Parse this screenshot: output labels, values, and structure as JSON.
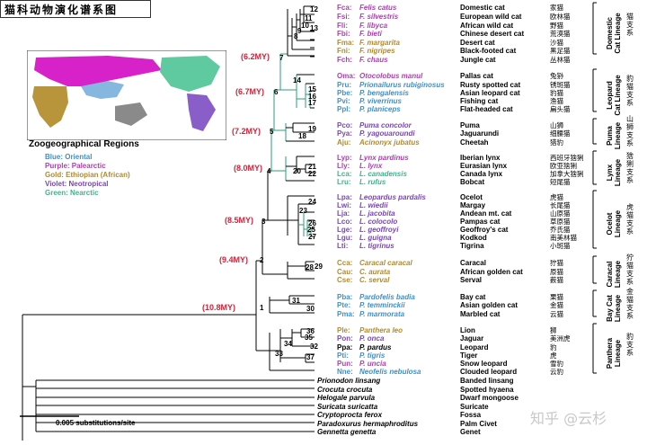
{
  "title": "猫科动物演化谱系图",
  "map": {
    "heading": "Zoogeographical Regions",
    "legend": [
      {
        "label": "Blue: Oriental",
        "color": "#3f8fc9"
      },
      {
        "label": "Purple: Palearctic",
        "color": "#b23bb3"
      },
      {
        "label": "Gold: Ethiopian (African)",
        "color": "#b38a2a"
      },
      {
        "label": "Violet: Neotropical",
        "color": "#7a45b8"
      },
      {
        "label": "Green: Nearctic",
        "color": "#3fb38a"
      }
    ],
    "region_colors": {
      "palearctic": "#d622c8",
      "oriental": "#86b7de",
      "ethiopian": "#b8943a",
      "neotropical": "#8a5ec8",
      "nearctic": "#5fc9a0",
      "australia": "#8a8a8a"
    }
  },
  "ages": [
    "(6.2MY)",
    "(6.7MY)",
    "(7.2MY)",
    "(8.0MY)",
    "(8.5MY)",
    "(9.4MY)",
    "(10.8MY)"
  ],
  "nodes": [
    "1",
    "2",
    "3",
    "4",
    "5",
    "6",
    "7",
    "8",
    "9",
    "10",
    "11",
    "12",
    "13",
    "14",
    "15",
    "16",
    "17",
    "18",
    "19",
    "20",
    "21",
    "22",
    "23",
    "24",
    "25",
    "26",
    "27",
    "28",
    "29",
    "30",
    "31",
    "32",
    "33",
    "34",
    "35",
    "36",
    "37"
  ],
  "taxa": [
    {
      "code": "Fca:",
      "sci": "Felis catus",
      "common": "Domestic cat",
      "cn": "家猫",
      "color": "#b23bb3"
    },
    {
      "code": "Fsi:",
      "sci": "F. silvestris",
      "common": "European wild cat",
      "cn": "欧林猫",
      "color": "#b23bb3"
    },
    {
      "code": "Fli:",
      "sci": "F. libyca",
      "common": "African wild cat",
      "cn": "野猫",
      "color": "#b23bb3"
    },
    {
      "code": "Fbi:",
      "sci": "F. bieti",
      "common": "Chinese desert cat",
      "cn": "荒漠猫",
      "color": "#b23bb3"
    },
    {
      "code": "Fma:",
      "sci": "F. margarita",
      "common": "Desert cat",
      "cn": "沙猫",
      "color": "#b38a2a"
    },
    {
      "code": "Fni:",
      "sci": "F. nigripes",
      "common": "Black-footed cat",
      "cn": "黑足猫",
      "color": "#b38a2a"
    },
    {
      "code": "Fch:",
      "sci": "F. chaus",
      "common": "Jungle cat",
      "cn": "丛林猫",
      "color": "#b23bb3"
    },
    {
      "code": "Oma:",
      "sci": "Otocolobus manul",
      "common": "Pallas cat",
      "cn": "兔狲",
      "color": "#b23bb3"
    },
    {
      "code": "Pru:",
      "sci": "Prionailurus rubiginosus",
      "common": "Rusty spotted cat",
      "cn": "锈斑猫",
      "color": "#3f8fc9"
    },
    {
      "code": "Pbe:",
      "sci": "P. bengalensis",
      "common": "Asian leopard cat",
      "cn": "豹猫",
      "color": "#3f8fc9"
    },
    {
      "code": "Pvi:",
      "sci": "P. viverrinus",
      "common": "Fishing cat",
      "cn": "渔猫",
      "color": "#3f8fc9"
    },
    {
      "code": "Ppl:",
      "sci": "P. planiceps",
      "common": "Flat-headed cat",
      "cn": "扁头猫",
      "color": "#3f8fc9"
    },
    {
      "code": "Pco:",
      "sci": "Puma concolor",
      "common": "Puma",
      "cn": "山狮",
      "color": "#7a45b8"
    },
    {
      "code": "Pya:",
      "sci": "P. yagouaroundi",
      "common": "Jaguarundi",
      "cn": "细腰猫",
      "color": "#7a45b8"
    },
    {
      "code": "Aju:",
      "sci": "Acinonyx jubatus",
      "common": "Cheetah",
      "cn": "猎豹",
      "color": "#b38a2a"
    },
    {
      "code": "Lyp:",
      "sci": "Lynx pardinus",
      "common": "Iberian lynx",
      "cn": "西班牙猞猁",
      "color": "#b23bb3"
    },
    {
      "code": "Lly:",
      "sci": "L. lynx",
      "common": "Eurasian lynx",
      "cn": "欧亚猞猁",
      "color": "#b23bb3"
    },
    {
      "code": "Lca:",
      "sci": "L. canadensis",
      "common": "Canada lynx",
      "cn": "加拿大猞猁",
      "color": "#3fb38a"
    },
    {
      "code": "Lru:",
      "sci": "L. rufus",
      "common": "Bobcat",
      "cn": "短尾猫",
      "color": "#3fb38a"
    },
    {
      "code": "Lpa:",
      "sci": "Leopardus pardalis",
      "common": "Ocelot",
      "cn": "虎猫",
      "color": "#7a45b8"
    },
    {
      "code": "Lwi:",
      "sci": "L. wiedii",
      "common": "Margay",
      "cn": "长尾猫",
      "color": "#7a45b8"
    },
    {
      "code": "Lja:",
      "sci": "L. jacobita",
      "common": "Andean mt. cat",
      "cn": "山原猫",
      "color": "#7a45b8"
    },
    {
      "code": "Lco:",
      "sci": "L. colocolo",
      "common": "Pampas cat",
      "cn": "草原猫",
      "color": "#7a45b8"
    },
    {
      "code": "Lge:",
      "sci": "L. geoffroyi",
      "common": "Geoffroy's cat",
      "cn": "乔氏猫",
      "color": "#7a45b8"
    },
    {
      "code": "Lgu:",
      "sci": "L. guigna",
      "common": "Kodkod",
      "cn": "南美林猫",
      "color": "#7a45b8"
    },
    {
      "code": "Lti:",
      "sci": "L. tigrinus",
      "common": "Tigrina",
      "cn": "小斑猫",
      "color": "#7a45b8"
    },
    {
      "code": "Cca:",
      "sci": "Caracal caracal",
      "common": "Caracal",
      "cn": "狞猫",
      "color": "#b38a2a"
    },
    {
      "code": "Cau:",
      "sci": "C. aurata",
      "common": "African golden cat",
      "cn": "原猫",
      "color": "#b38a2a"
    },
    {
      "code": "Cse:",
      "sci": "C. serval",
      "common": "Serval",
      "cn": "薮猫",
      "color": "#b38a2a"
    },
    {
      "code": "Pba:",
      "sci": "Pardofelis badia",
      "common": "Bay cat",
      "cn": "栗猫",
      "color": "#3f8fc9"
    },
    {
      "code": "Pte:",
      "sci": "P. temminckii",
      "common": "Asian golden cat",
      "cn": "金猫",
      "color": "#3f8fc9"
    },
    {
      "code": "Pma:",
      "sci": "P. marmorata",
      "common": "Marbled cat",
      "cn": "云猫",
      "color": "#3f8fc9"
    },
    {
      "code": "Ple:",
      "sci": "Panthera leo",
      "common": "Lion",
      "cn": "狮",
      "color": "#b38a2a"
    },
    {
      "code": "Pon:",
      "sci": "P. onca",
      "common": "Jaguar",
      "cn": "美洲虎",
      "color": "#7a45b8"
    },
    {
      "code": "Ppa:",
      "sci": "P. pardus",
      "common": "Leopard",
      "cn": "豹",
      "color": "#000000"
    },
    {
      "code": "Pti:",
      "sci": "P. tigris",
      "common": "Tiger",
      "cn": "虎",
      "color": "#3f8fc9"
    },
    {
      "code": "Pun:",
      "sci": "P. uncia",
      "common": "Snow leopard",
      "cn": "雪豹",
      "color": "#b23bb3"
    },
    {
      "code": "Nne:",
      "sci": "Neofelis nebulosa",
      "common": "Clouded leopard",
      "cn": "云豹",
      "color": "#3f8fc9"
    }
  ],
  "outgroups": [
    {
      "sci": "Prionodon linsang",
      "common": "Banded linsang"
    },
    {
      "sci": "Crocuta crocuta",
      "common": "Spotted hyaena"
    },
    {
      "sci": "Helogale parvula",
      "common": "Dwarf mongoose"
    },
    {
      "sci": "Suricata suricatta",
      "common": "Suricate"
    },
    {
      "sci": "Cryptoprocta ferox",
      "common": "Fossa"
    },
    {
      "sci": "Paradoxurus hermaphroditus",
      "common": "Palm Civet"
    },
    {
      "sci": "Gennetta genetta",
      "common": "Genet"
    }
  ],
  "lineages": [
    {
      "en": "Domestic Cat Lineage",
      "cn": "猫支系"
    },
    {
      "en": "Leopard Cat Lineage",
      "cn": "豹猫支系"
    },
    {
      "en": "Puma Lineage",
      "cn": "山狮支系"
    },
    {
      "en": "Lynx Lineage",
      "cn": "猞猁支系"
    },
    {
      "en": "Ocelot Lineage",
      "cn": "虎猫支系"
    },
    {
      "en": "Caracal Lineage",
      "cn": "狞猫支系"
    },
    {
      "en": "Bay Cat Lineage",
      "cn": "金猫支系"
    },
    {
      "en": "Panthera Lineage",
      "cn": "豹支系"
    }
  ],
  "scale_label": "0.005 substitutions/site",
  "watermark": "知乎 @云杉"
}
